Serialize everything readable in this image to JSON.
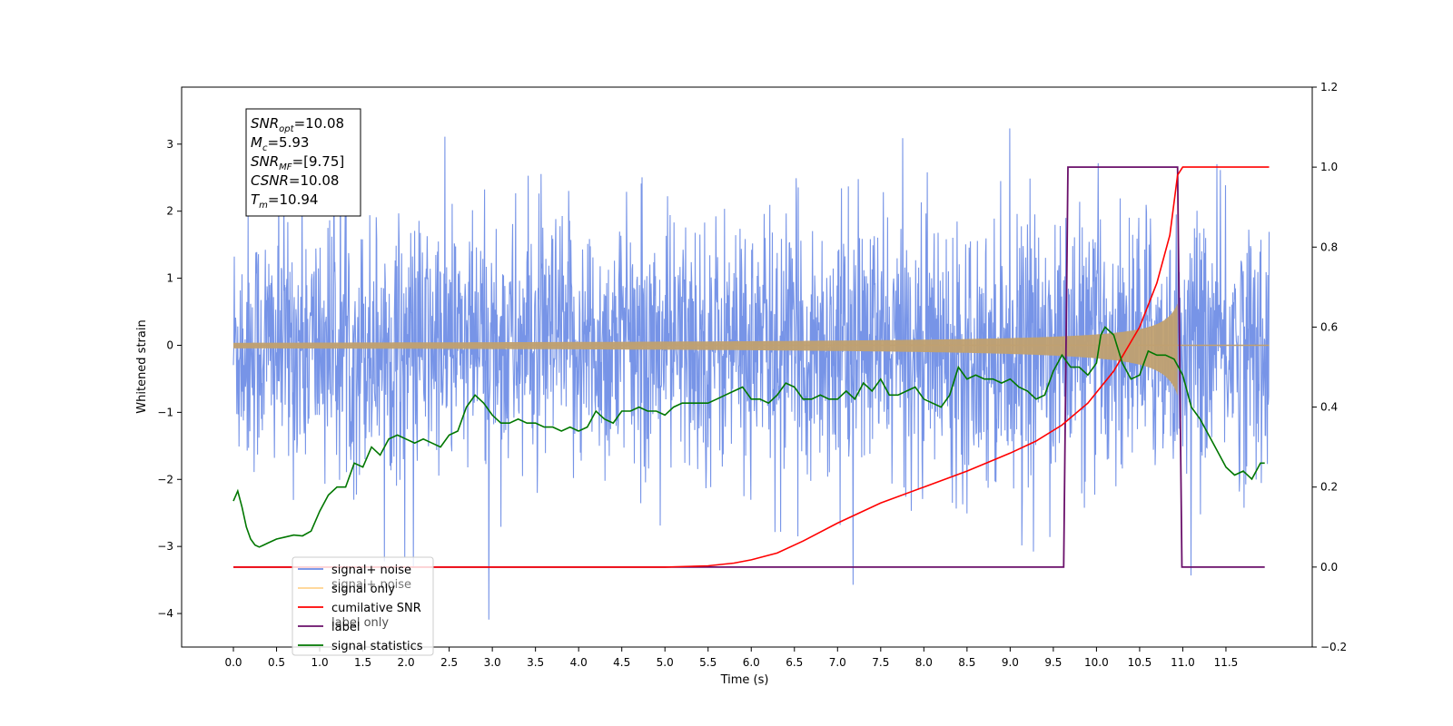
{
  "chart_data": {
    "type": "line",
    "title": "",
    "xlabel": "Time (s)",
    "ylabel": "Whitened strain",
    "xlim": [
      -0.6,
      12.5
    ],
    "ylim": [
      -4.5,
      3.85
    ],
    "y2lim": [
      -0.2,
      1.2
    ],
    "x_ticks": [
      "0.0",
      "0.5",
      "1.0",
      "1.5",
      "2.0",
      "2.5",
      "3.0",
      "3.5",
      "4.0",
      "4.5",
      "5.0",
      "5.5",
      "6.0",
      "6.5",
      "7.0",
      "7.5",
      "8.0",
      "8.5",
      "9.0",
      "9.5",
      "10.0",
      "10.5",
      "11.0",
      "11.5"
    ],
    "y_ticks": [
      "3",
      "2",
      "1",
      "0",
      "−1",
      "−2",
      "−3",
      "−4"
    ],
    "y2_ticks": [
      "1.2",
      "1.0",
      "0.8",
      "0.6",
      "0.4",
      "0.2",
      "0.0",
      "−0.2"
    ],
    "grid": false,
    "legend_position": "lower-left",
    "legend": [
      {
        "name": "signal+ noise",
        "color": "#6b8be5"
      },
      {
        "name": "signal only",
        "color": "#ffc060"
      },
      {
        "name": "cumilative SNR",
        "color": "#ff0000"
      },
      {
        "name": "label",
        "color": "#6a0f6a"
      },
      {
        "name": "signal statistics",
        "color": "#007700"
      }
    ],
    "legend_ghost_labels": [
      "signal+ noise",
      "label only"
    ],
    "annotation": {
      "lines": [
        {
          "base": "SNR",
          "sub": "opt",
          "value": "=10.08"
        },
        {
          "base": "M",
          "sub": "c",
          "value": "=5.93"
        },
        {
          "base": "SNR",
          "sub": "MF",
          "value": "=[9.75]"
        },
        {
          "base": "CSNR",
          "sub": "",
          "value": "=10.08"
        },
        {
          "base": "T",
          "sub": "m",
          "value": "=10.94"
        }
      ]
    },
    "noise": {
      "color": "#6b8be5",
      "x_start": 0.0,
      "x_end": 12.0,
      "low_typical": -1.5,
      "high_typical": 1.4
    },
    "signal_only": {
      "color": "#c0a070",
      "x_start": 0.0,
      "x_end": 12.0,
      "t_merge": 10.94,
      "peak_amplitude": 0.85
    },
    "label_series": {
      "color": "#6a0f6a",
      "x": [
        0.0,
        9.62,
        9.67,
        10.94,
        10.99,
        11.95
      ],
      "y": [
        0.0,
        0.0,
        1.0,
        1.0,
        0.0,
        0.0
      ]
    },
    "cumulative_snr": {
      "color": "#ff0000",
      "x": [
        0.0,
        5.0,
        5.5,
        5.8,
        6.0,
        6.3,
        6.6,
        7.0,
        7.5,
        8.0,
        8.5,
        9.0,
        9.3,
        9.6,
        9.9,
        10.2,
        10.5,
        10.7,
        10.85,
        10.94,
        11.0,
        12.0
      ],
      "y": [
        0.0,
        0.0,
        0.003,
        0.01,
        0.018,
        0.035,
        0.065,
        0.11,
        0.16,
        0.2,
        0.24,
        0.285,
        0.315,
        0.355,
        0.41,
        0.49,
        0.6,
        0.71,
        0.83,
        0.98,
        1.0,
        1.0
      ]
    },
    "signal_statistics": {
      "color": "#007700",
      "x": [
        0.0,
        0.05,
        0.1,
        0.15,
        0.2,
        0.25,
        0.3,
        0.35,
        0.4,
        0.5,
        0.6,
        0.7,
        0.8,
        0.9,
        1.0,
        1.1,
        1.2,
        1.3,
        1.4,
        1.5,
        1.6,
        1.7,
        1.8,
        1.9,
        2.0,
        2.1,
        2.2,
        2.3,
        2.4,
        2.5,
        2.6,
        2.7,
        2.8,
        2.9,
        3.0,
        3.1,
        3.2,
        3.3,
        3.4,
        3.5,
        3.6,
        3.7,
        3.8,
        3.9,
        4.0,
        4.1,
        4.2,
        4.3,
        4.4,
        4.5,
        4.6,
        4.7,
        4.8,
        4.9,
        5.0,
        5.1,
        5.2,
        5.3,
        5.4,
        5.5,
        5.6,
        5.7,
        5.8,
        5.9,
        6.0,
        6.1,
        6.2,
        6.3,
        6.4,
        6.5,
        6.6,
        6.7,
        6.8,
        6.9,
        7.0,
        7.1,
        7.2,
        7.3,
        7.4,
        7.5,
        7.6,
        7.7,
        7.8,
        7.9,
        8.0,
        8.1,
        8.2,
        8.3,
        8.4,
        8.5,
        8.6,
        8.7,
        8.8,
        8.9,
        9.0,
        9.1,
        9.2,
        9.3,
        9.4,
        9.5,
        9.6,
        9.7,
        9.8,
        9.9,
        10.0,
        10.05,
        10.1,
        10.2,
        10.3,
        10.4,
        10.5,
        10.6,
        10.7,
        10.8,
        10.9,
        11.0,
        11.1,
        11.2,
        11.3,
        11.4,
        11.5,
        11.6,
        11.7,
        11.8,
        11.9,
        11.95
      ],
      "y": [
        0.165,
        0.19,
        0.15,
        0.1,
        0.07,
        0.055,
        0.05,
        0.055,
        0.06,
        0.07,
        0.075,
        0.08,
        0.078,
        0.09,
        0.14,
        0.18,
        0.2,
        0.2,
        0.26,
        0.25,
        0.3,
        0.28,
        0.32,
        0.33,
        0.32,
        0.31,
        0.32,
        0.31,
        0.3,
        0.33,
        0.34,
        0.4,
        0.43,
        0.41,
        0.38,
        0.36,
        0.36,
        0.37,
        0.36,
        0.36,
        0.35,
        0.35,
        0.34,
        0.35,
        0.34,
        0.35,
        0.39,
        0.37,
        0.36,
        0.39,
        0.39,
        0.4,
        0.39,
        0.39,
        0.38,
        0.4,
        0.41,
        0.41,
        0.41,
        0.41,
        0.42,
        0.43,
        0.44,
        0.45,
        0.42,
        0.42,
        0.41,
        0.43,
        0.46,
        0.45,
        0.42,
        0.42,
        0.43,
        0.42,
        0.42,
        0.44,
        0.42,
        0.46,
        0.44,
        0.47,
        0.43,
        0.43,
        0.44,
        0.45,
        0.42,
        0.41,
        0.4,
        0.43,
        0.5,
        0.47,
        0.48,
        0.47,
        0.47,
        0.46,
        0.47,
        0.45,
        0.44,
        0.42,
        0.43,
        0.49,
        0.53,
        0.5,
        0.5,
        0.48,
        0.51,
        0.58,
        0.6,
        0.58,
        0.51,
        0.47,
        0.48,
        0.54,
        0.53,
        0.53,
        0.52,
        0.48,
        0.4,
        0.37,
        0.33,
        0.29,
        0.25,
        0.23,
        0.24,
        0.22,
        0.26,
        0.26
      ]
    }
  }
}
